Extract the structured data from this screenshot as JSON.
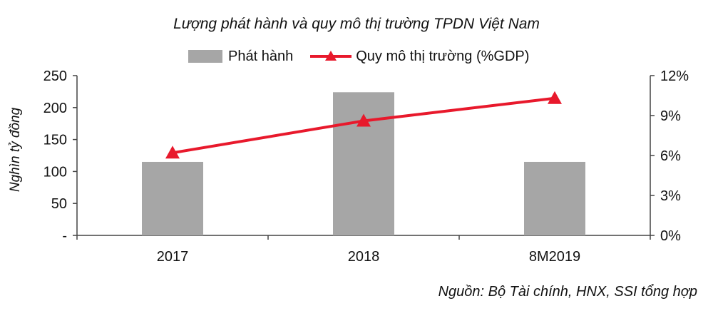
{
  "chart_data": {
    "type": "bar",
    "title": "Lượng phát hành và quy mô thị trường TPDN Việt Nam",
    "categories": [
      "2017",
      "2018",
      "8M2019"
    ],
    "series": [
      {
        "name": "Phát hành",
        "type": "bar",
        "axis": "left",
        "color": "#a6a6a6",
        "values": [
          115,
          224,
          115
        ]
      },
      {
        "name": "Quy mô thị trường (%GDP)",
        "type": "line",
        "axis": "right",
        "color": "#e8192c",
        "marker": "triangle",
        "values": [
          6.2,
          8.6,
          10.3
        ]
      }
    ],
    "ylabel": "Nghìn tỷ đồng",
    "ylim": [
      0,
      250
    ],
    "yticks": [
      "-",
      "50",
      "100",
      "150",
      "200",
      "250"
    ],
    "y2lim": [
      0,
      12
    ],
    "y2ticks": [
      "0%",
      "3%",
      "6%",
      "9%",
      "12%"
    ],
    "legend_position": "top",
    "grid": false
  },
  "source_note": "Nguồn: Bộ Tài chính, HNX, SSI tổng hợp"
}
